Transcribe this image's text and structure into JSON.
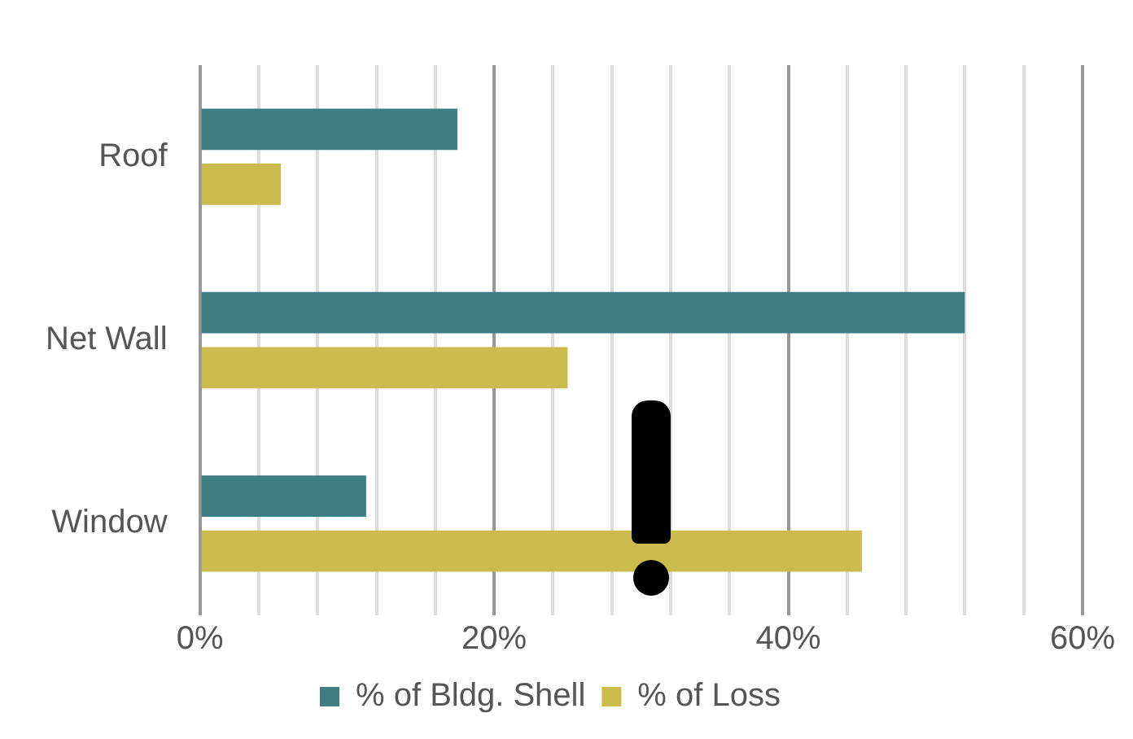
{
  "chart_data": {
    "type": "bar",
    "orientation": "horizontal",
    "categories": [
      "Roof",
      "Net Wall",
      "Window"
    ],
    "series": [
      {
        "name": "% of Bldg. Shell",
        "color": "#3e7d84",
        "values": [
          17.5,
          52,
          11.3
        ]
      },
      {
        "name": "% of Loss",
        "color": "#cbbb4c",
        "values": [
          5.5,
          25,
          45
        ]
      }
    ],
    "xlim": [
      0,
      60
    ],
    "xticks": [
      {
        "value": 0,
        "label": "0%"
      },
      {
        "value": 4,
        "label": null
      },
      {
        "value": 8,
        "label": null
      },
      {
        "value": 12,
        "label": null
      },
      {
        "value": 16,
        "label": null
      },
      {
        "value": 20,
        "label": "20%"
      },
      {
        "value": 24,
        "label": null
      },
      {
        "value": 28,
        "label": null
      },
      {
        "value": 32,
        "label": null
      },
      {
        "value": 36,
        "label": null
      },
      {
        "value": 40,
        "label": "40%"
      },
      {
        "value": 44,
        "label": null
      },
      {
        "value": 48,
        "label": null
      },
      {
        "value": 52,
        "label": null
      },
      {
        "value": 56,
        "label": null
      },
      {
        "value": 60,
        "label": "60%"
      }
    ],
    "grid": "x",
    "legend": "bottom"
  }
}
